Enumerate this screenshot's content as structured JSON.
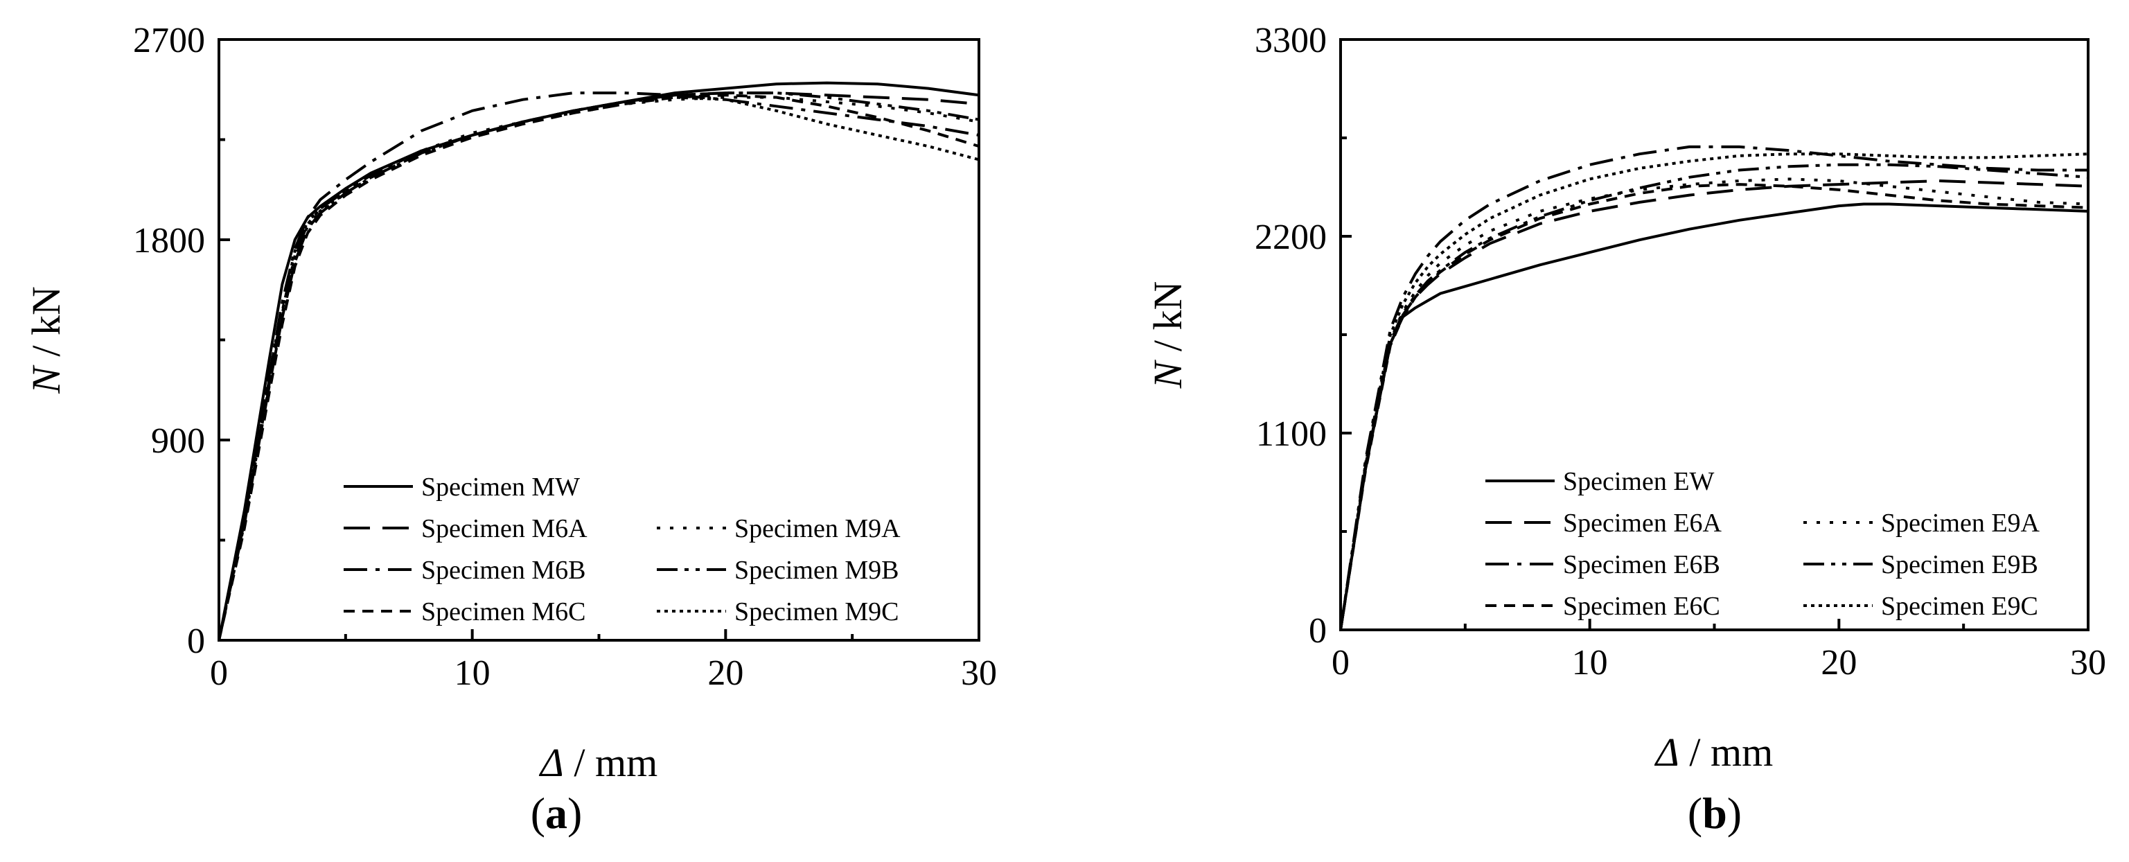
{
  "chart_data": [
    {
      "type": "line",
      "panel_label": "(a)",
      "panel_letter": "a",
      "ylabel_var": "N",
      "ylabel_unit": " / kN",
      "xlabel_var": "Δ",
      "xlabel_unit": " / mm",
      "xlim": [
        0,
        30
      ],
      "ylim": [
        0,
        2700
      ],
      "xticks": [
        0,
        10,
        20,
        30
      ],
      "yticks": [
        0,
        900,
        1800,
        2700
      ],
      "legend_placement": "bottom-right",
      "legend_rows": [
        [
          "MW"
        ],
        [
          "M6A",
          "M9A"
        ],
        [
          "M6B",
          "M9B"
        ],
        [
          "M6C",
          "M9C"
        ]
      ],
      "series": [
        {
          "key": "MW",
          "name": "Specimen MW",
          "dash": "solid",
          "x": [
            0,
            1,
            2,
            2.5,
            3,
            3.5,
            4,
            5,
            6,
            8,
            10,
            12,
            14,
            16,
            18,
            20,
            22,
            24,
            26,
            28,
            30
          ],
          "y": [
            0,
            580,
            1270,
            1600,
            1800,
            1900,
            1950,
            2030,
            2100,
            2200,
            2270,
            2330,
            2380,
            2420,
            2460,
            2480,
            2500,
            2505,
            2500,
            2480,
            2450
          ]
        },
        {
          "key": "M6A",
          "name": "Specimen M6A",
          "dash": "dash",
          "x": [
            0,
            1,
            2,
            2.5,
            3,
            3.5,
            4,
            5,
            6,
            8,
            10,
            12,
            14,
            16,
            18,
            20,
            22,
            24,
            26,
            28,
            30
          ],
          "y": [
            0,
            520,
            1150,
            1450,
            1700,
            1850,
            1920,
            2010,
            2080,
            2190,
            2270,
            2330,
            2380,
            2420,
            2450,
            2460,
            2460,
            2450,
            2440,
            2430,
            2410
          ]
        },
        {
          "key": "M9A",
          "name": "Specimen M9A",
          "dash": "dot",
          "x": [
            0,
            1,
            2,
            2.5,
            3,
            3.5,
            4,
            5,
            6,
            8,
            10,
            12,
            14,
            16,
            18,
            20,
            22,
            24,
            26,
            28,
            30
          ],
          "y": [
            0,
            540,
            1200,
            1500,
            1750,
            1880,
            1940,
            2020,
            2090,
            2200,
            2280,
            2330,
            2370,
            2410,
            2430,
            2440,
            2440,
            2420,
            2400,
            2370,
            2330
          ]
        },
        {
          "key": "M6B",
          "name": "Specimen M6B",
          "dash": "dashdot",
          "x": [
            0,
            1,
            2,
            2.5,
            3,
            3.5,
            4,
            5,
            6,
            8,
            10,
            12,
            14,
            16,
            18,
            20,
            22,
            24,
            26,
            28,
            30
          ],
          "y": [
            0,
            540,
            1200,
            1520,
            1760,
            1900,
            1980,
            2070,
            2150,
            2290,
            2380,
            2430,
            2460,
            2460,
            2450,
            2430,
            2400,
            2370,
            2340,
            2310,
            2270
          ]
        },
        {
          "key": "M9B",
          "name": "Specimen M9B",
          "dash": "dashdotdot",
          "x": [
            0,
            1,
            2,
            2.5,
            3,
            3.5,
            4,
            5,
            6,
            8,
            10,
            12,
            14,
            16,
            18,
            20,
            22,
            24,
            26,
            28,
            30
          ],
          "y": [
            0,
            530,
            1180,
            1480,
            1730,
            1870,
            1940,
            2020,
            2090,
            2200,
            2270,
            2330,
            2380,
            2420,
            2450,
            2460,
            2460,
            2440,
            2410,
            2380,
            2340
          ]
        },
        {
          "key": "M6C",
          "name": "Specimen M6C",
          "dash": "shortdash",
          "x": [
            0,
            1,
            2,
            2.5,
            3,
            3.5,
            4,
            5,
            6,
            8,
            10,
            12,
            14,
            16,
            18,
            20,
            22,
            24,
            26,
            28,
            30
          ],
          "y": [
            0,
            500,
            1120,
            1420,
            1680,
            1830,
            1910,
            2000,
            2070,
            2180,
            2260,
            2320,
            2370,
            2410,
            2440,
            2450,
            2440,
            2400,
            2350,
            2290,
            2220
          ]
        },
        {
          "key": "M9C",
          "name": "Specimen M9C",
          "dash": "densedot",
          "x": [
            0,
            1,
            2,
            2.5,
            3,
            3.5,
            4,
            5,
            6,
            8,
            10,
            12,
            14,
            16,
            18,
            20,
            22,
            24,
            26,
            28,
            30
          ],
          "y": [
            0,
            520,
            1160,
            1470,
            1720,
            1860,
            1930,
            2010,
            2080,
            2190,
            2270,
            2330,
            2380,
            2420,
            2440,
            2430,
            2380,
            2320,
            2270,
            2220,
            2160
          ]
        }
      ]
    },
    {
      "type": "line",
      "panel_label": "(b)",
      "panel_letter": "b",
      "ylabel_var": "N",
      "ylabel_unit": " / kN",
      "xlabel_var": "Δ",
      "xlabel_unit": " / mm",
      "xlim": [
        0,
        30
      ],
      "ylim": [
        0,
        3300
      ],
      "xticks": [
        0,
        10,
        20,
        30
      ],
      "yticks": [
        0,
        1100,
        2200,
        3300
      ],
      "legend_placement": "bottom-right",
      "legend_rows": [
        [
          "EW"
        ],
        [
          "E6A",
          "E9A"
        ],
        [
          "E6B",
          "E9B"
        ],
        [
          "E6C",
          "E9C"
        ]
      ],
      "series": [
        {
          "key": "EW",
          "name": "Specimen EW",
          "dash": "solid",
          "x": [
            0,
            1,
            2,
            2.5,
            3,
            3.5,
            4,
            5,
            6,
            8,
            10,
            12,
            14,
            16,
            18,
            20,
            21,
            22,
            24,
            26,
            28,
            30
          ],
          "y": [
            0,
            900,
            1600,
            1750,
            1800,
            1840,
            1880,
            1920,
            1960,
            2040,
            2110,
            2180,
            2240,
            2290,
            2330,
            2370,
            2380,
            2380,
            2370,
            2360,
            2350,
            2340
          ]
        },
        {
          "key": "E6A",
          "name": "Specimen E6A",
          "dash": "dash",
          "x": [
            0,
            1,
            2,
            2.5,
            3,
            3.5,
            4,
            5,
            6,
            8,
            10,
            12,
            14,
            16,
            18,
            20,
            22,
            24,
            26,
            28,
            30
          ],
          "y": [
            0,
            900,
            1600,
            1760,
            1860,
            1930,
            1990,
            2080,
            2160,
            2270,
            2340,
            2390,
            2430,
            2460,
            2480,
            2490,
            2500,
            2510,
            2500,
            2490,
            2480
          ]
        },
        {
          "key": "E9A",
          "name": "Specimen E9A",
          "dash": "dot",
          "x": [
            0,
            1,
            2,
            2.5,
            3,
            3.5,
            4,
            5,
            6,
            8,
            10,
            12,
            14,
            16,
            18,
            20,
            22,
            24,
            26,
            28,
            30
          ],
          "y": [
            0,
            920,
            1620,
            1780,
            1890,
            1980,
            2050,
            2150,
            2230,
            2340,
            2410,
            2460,
            2490,
            2510,
            2520,
            2510,
            2480,
            2450,
            2420,
            2390,
            2380
          ]
        },
        {
          "key": "E6B",
          "name": "Specimen E6B",
          "dash": "dashdot",
          "x": [
            0,
            1,
            2,
            2.5,
            3,
            3.5,
            4,
            5,
            6,
            8,
            10,
            12,
            14,
            16,
            18,
            20,
            22,
            24,
            26,
            28,
            30
          ],
          "y": [
            0,
            950,
            1680,
            1860,
            1990,
            2090,
            2170,
            2290,
            2380,
            2510,
            2600,
            2660,
            2700,
            2700,
            2680,
            2650,
            2620,
            2600,
            2580,
            2570,
            2570
          ]
        },
        {
          "key": "E9B",
          "name": "Specimen E9B",
          "dash": "dashdotdot",
          "x": [
            0,
            1,
            2,
            2.5,
            3,
            3.5,
            4,
            5,
            6,
            8,
            10,
            12,
            14,
            16,
            18,
            20,
            22,
            24,
            26,
            28,
            30
          ],
          "y": [
            0,
            910,
            1610,
            1770,
            1870,
            1950,
            2010,
            2110,
            2190,
            2310,
            2400,
            2470,
            2530,
            2570,
            2590,
            2600,
            2600,
            2590,
            2570,
            2550,
            2530
          ]
        },
        {
          "key": "E6C",
          "name": "Specimen E6C",
          "dash": "shortdash",
          "x": [
            0,
            1,
            2,
            2.5,
            3,
            3.5,
            4,
            5,
            6,
            8,
            10,
            12,
            14,
            16,
            18,
            20,
            22,
            24,
            26,
            28,
            30
          ],
          "y": [
            0,
            890,
            1590,
            1750,
            1860,
            1940,
            2000,
            2100,
            2180,
            2300,
            2380,
            2440,
            2480,
            2490,
            2480,
            2460,
            2430,
            2400,
            2380,
            2370,
            2360
          ]
        },
        {
          "key": "E9C",
          "name": "Specimen E9C",
          "dash": "densedot",
          "x": [
            0,
            1,
            2,
            2.5,
            3,
            3.5,
            4,
            5,
            6,
            8,
            10,
            12,
            14,
            16,
            18,
            20,
            22,
            24,
            26,
            28,
            30
          ],
          "y": [
            0,
            930,
            1650,
            1820,
            1940,
            2030,
            2100,
            2210,
            2300,
            2430,
            2520,
            2580,
            2620,
            2650,
            2660,
            2660,
            2650,
            2640,
            2640,
            2650,
            2660
          ]
        }
      ]
    }
  ]
}
